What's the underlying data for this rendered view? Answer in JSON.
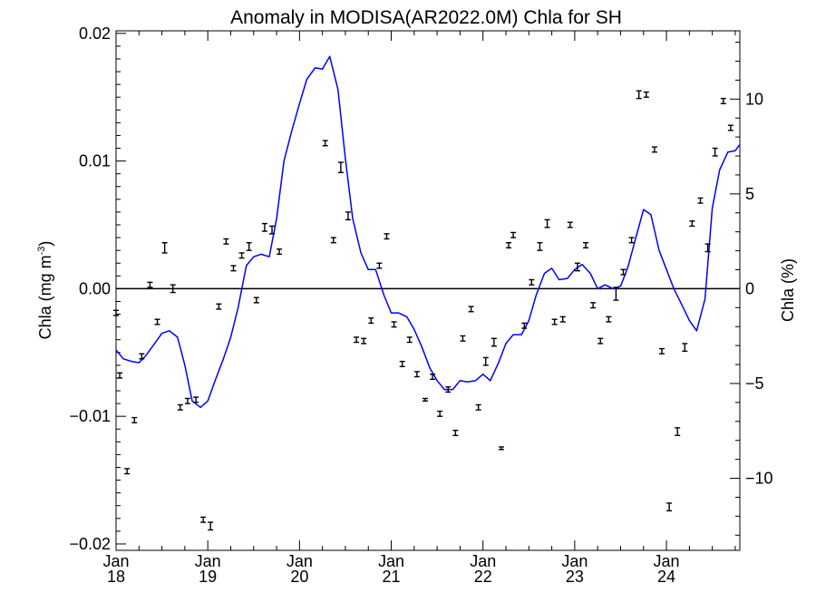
{
  "chart_data": {
    "type": "line",
    "title": "Anomaly in MODISA(AR2022.0M) Chla for SH",
    "ylabel_left_parts": [
      "Chla (mg m",
      "-3",
      ")"
    ],
    "ylabel_right": "Chla (%)",
    "xlim": [
      2018.0,
      2024.8
    ],
    "ylim_left": [
      -0.0205,
      0.0202
    ],
    "ylim_right": [
      -13.8,
      13.6
    ],
    "grid": false,
    "zero_line": true,
    "x_ticks": [
      {
        "x": 2018,
        "month": "Jan",
        "year": "18"
      },
      {
        "x": 2019,
        "month": "Jan",
        "year": "19"
      },
      {
        "x": 2020,
        "month": "Jan",
        "year": "20"
      },
      {
        "x": 2021,
        "month": "Jan",
        "year": "21"
      },
      {
        "x": 2022,
        "month": "Jan",
        "year": "22"
      },
      {
        "x": 2023,
        "month": "Jan",
        "year": "23"
      },
      {
        "x": 2024,
        "month": "Jan",
        "year": "24"
      }
    ],
    "y_ticks_left": [
      {
        "value": 0.02,
        "label": "0.02"
      },
      {
        "value": 0.01,
        "label": "0.01"
      },
      {
        "value": 0.0,
        "label": "0.00"
      },
      {
        "value": -0.01,
        "label": "−0.01"
      },
      {
        "value": -0.02,
        "label": "−0.02"
      }
    ],
    "y_ticks_right": [
      {
        "value": 10,
        "label": "10"
      },
      {
        "value": 5,
        "label": "5"
      },
      {
        "value": 0,
        "label": "0"
      },
      {
        "value": -5,
        "label": "−5"
      },
      {
        "value": -10,
        "label": "−10"
      }
    ],
    "series": [
      {
        "kind": "line",
        "axis": "left",
        "color": "#0000ff",
        "x": [
          2018.0,
          2018.08,
          2018.17,
          2018.25,
          2018.33,
          2018.42,
          2018.5,
          2018.58,
          2018.67,
          2018.75,
          2018.83,
          2018.92,
          2019.0,
          2019.08,
          2019.17,
          2019.25,
          2019.33,
          2019.42,
          2019.5,
          2019.58,
          2019.67,
          2019.75,
          2019.83,
          2019.92,
          2020.0,
          2020.08,
          2020.17,
          2020.25,
          2020.33,
          2020.42,
          2020.5,
          2020.58,
          2020.67,
          2020.75,
          2020.83,
          2020.92,
          2021.0,
          2021.08,
          2021.17,
          2021.25,
          2021.33,
          2021.42,
          2021.5,
          2021.58,
          2021.67,
          2021.75,
          2021.83,
          2021.92,
          2022.0,
          2022.08,
          2022.17,
          2022.25,
          2022.33,
          2022.42,
          2022.5,
          2022.58,
          2022.67,
          2022.75,
          2022.83,
          2022.92,
          2023.0,
          2023.08,
          2023.17,
          2023.25,
          2023.33,
          2023.42,
          2023.5,
          2023.58,
          2023.67,
          2023.75,
          2023.83,
          2023.92,
          2024.0,
          2024.08,
          2024.17,
          2024.25,
          2024.33,
          2024.42,
          2024.5,
          2024.58,
          2024.67,
          2024.75,
          2024.8
        ],
        "y": [
          -0.0048,
          -0.0055,
          -0.0057,
          -0.0058,
          -0.0052,
          -0.0043,
          -0.0035,
          -0.0033,
          -0.0038,
          -0.006,
          -0.0088,
          -0.0093,
          -0.0088,
          -0.0072,
          -0.0055,
          -0.0038,
          -0.0015,
          0.0018,
          0.0025,
          0.0027,
          0.0025,
          0.0055,
          0.01,
          0.0125,
          0.0145,
          0.0164,
          0.0173,
          0.0172,
          0.0182,
          0.0156,
          0.0102,
          0.0055,
          0.0028,
          0.0015,
          0.0015,
          -0.0005,
          -0.0019,
          -0.0019,
          -0.0022,
          -0.0032,
          -0.0045,
          -0.0062,
          -0.0072,
          -0.0079,
          -0.0079,
          -0.0072,
          -0.0073,
          -0.0072,
          -0.0067,
          -0.0072,
          -0.0058,
          -0.0043,
          -0.0036,
          -0.0036,
          -0.0025,
          -0.0005,
          0.0012,
          0.0016,
          0.0007,
          0.0008,
          0.0015,
          0.0019,
          0.0012,
          0.0,
          0.0003,
          0.0,
          0.0002,
          0.0017,
          0.0041,
          0.0062,
          0.0058,
          0.003,
          0.0015,
          0.0,
          -0.0013,
          -0.0025,
          -0.0033,
          -0.0008,
          0.0063,
          0.0093,
          0.0107,
          0.0108,
          0.0113
        ]
      },
      {
        "kind": "errorbar",
        "axis": "left",
        "color": "#000000",
        "points": [
          {
            "x": 2018.0,
            "y": -0.0019,
            "err": 0.0002
          },
          {
            "x": 2018.04,
            "y": -0.0068,
            "err": 0.0002
          },
          {
            "x": 2018.12,
            "y": -0.0143,
            "err": 0.0002
          },
          {
            "x": 2018.2,
            "y": -0.0103,
            "err": 0.0002
          },
          {
            "x": 2018.28,
            "y": -0.0053,
            "err": 0.0002
          },
          {
            "x": 2018.37,
            "y": 0.0003,
            "err": 0.0002
          },
          {
            "x": 2018.45,
            "y": -0.0026,
            "err": 0.0002
          },
          {
            "x": 2018.53,
            "y": 0.0032,
            "err": 0.0004
          },
          {
            "x": 2018.62,
            "y": 0.0,
            "err": 0.0003
          },
          {
            "x": 2018.7,
            "y": -0.0093,
            "err": 0.0002
          },
          {
            "x": 2018.78,
            "y": -0.0088,
            "err": 0.0002
          },
          {
            "x": 2018.87,
            "y": -0.0087,
            "err": 0.0002
          },
          {
            "x": 2018.95,
            "y": -0.0181,
            "err": 0.0002
          },
          {
            "x": 2019.03,
            "y": -0.0186,
            "err": 0.0003
          },
          {
            "x": 2019.12,
            "y": -0.0014,
            "err": 0.0002
          },
          {
            "x": 2019.2,
            "y": 0.0037,
            "err": 0.0002
          },
          {
            "x": 2019.28,
            "y": 0.0016,
            "err": 0.0002
          },
          {
            "x": 2019.37,
            "y": 0.0026,
            "err": 0.0002
          },
          {
            "x": 2019.45,
            "y": 0.0033,
            "err": 0.0003
          },
          {
            "x": 2019.53,
            "y": -0.0009,
            "err": 0.0002
          },
          {
            "x": 2019.62,
            "y": 0.0048,
            "err": 0.0003
          },
          {
            "x": 2019.7,
            "y": 0.0046,
            "err": 0.0003
          },
          {
            "x": 2019.78,
            "y": 0.0029,
            "err": 0.0002
          },
          {
            "x": 2020.28,
            "y": 0.0114,
            "err": 0.0002
          },
          {
            "x": 2020.37,
            "y": 0.0038,
            "err": 0.0002
          },
          {
            "x": 2020.45,
            "y": 0.0095,
            "err": 0.0004
          },
          {
            "x": 2020.53,
            "y": 0.0057,
            "err": 0.0003
          },
          {
            "x": 2020.62,
            "y": -0.004,
            "err": 0.0002
          },
          {
            "x": 2020.7,
            "y": -0.0041,
            "err": 0.0002
          },
          {
            "x": 2020.78,
            "y": -0.0025,
            "err": 0.0002
          },
          {
            "x": 2020.87,
            "y": 0.0018,
            "err": 0.0002
          },
          {
            "x": 2020.95,
            "y": 0.0041,
            "err": 0.0002
          },
          {
            "x": 2021.03,
            "y": -0.0028,
            "err": 0.0002
          },
          {
            "x": 2021.12,
            "y": -0.0059,
            "err": 0.0002
          },
          {
            "x": 2021.2,
            "y": -0.004,
            "err": 0.0002
          },
          {
            "x": 2021.28,
            "y": -0.0067,
            "err": 0.0002
          },
          {
            "x": 2021.37,
            "y": -0.0087,
            "err": 0.0001
          },
          {
            "x": 2021.45,
            "y": -0.0069,
            "err": 0.0002
          },
          {
            "x": 2021.53,
            "y": -0.0098,
            "err": 0.0002
          },
          {
            "x": 2021.62,
            "y": -0.0079,
            "err": 0.0002
          },
          {
            "x": 2021.7,
            "y": -0.0113,
            "err": 0.0002
          },
          {
            "x": 2021.78,
            "y": -0.0039,
            "err": 0.0002
          },
          {
            "x": 2021.87,
            "y": -0.0016,
            "err": 0.0002
          },
          {
            "x": 2021.95,
            "y": -0.0093,
            "err": 0.0002
          },
          {
            "x": 2022.03,
            "y": -0.0057,
            "err": 0.0003
          },
          {
            "x": 2022.12,
            "y": -0.0042,
            "err": 0.0003
          },
          {
            "x": 2022.2,
            "y": -0.0125,
            "err": 0.0001
          },
          {
            "x": 2022.28,
            "y": 0.0034,
            "err": 0.0002
          },
          {
            "x": 2022.33,
            "y": 0.0042,
            "err": 0.0002
          },
          {
            "x": 2022.45,
            "y": -0.0029,
            "err": 0.0002
          },
          {
            "x": 2022.53,
            "y": 0.0005,
            "err": 0.0002
          },
          {
            "x": 2022.62,
            "y": 0.0033,
            "err": 0.0003
          },
          {
            "x": 2022.7,
            "y": 0.0051,
            "err": 0.0003
          },
          {
            "x": 2022.78,
            "y": -0.0026,
            "err": 0.0002
          },
          {
            "x": 2022.87,
            "y": -0.0024,
            "err": 0.0002
          },
          {
            "x": 2022.95,
            "y": 0.005,
            "err": 0.0002
          },
          {
            "x": 2023.03,
            "y": 0.0017,
            "err": 0.0003
          },
          {
            "x": 2023.12,
            "y": 0.0034,
            "err": 0.0002
          },
          {
            "x": 2023.2,
            "y": -0.0013,
            "err": 0.0002
          },
          {
            "x": 2023.28,
            "y": -0.0041,
            "err": 0.0002
          },
          {
            "x": 2023.37,
            "y": -0.0024,
            "err": 0.0002
          },
          {
            "x": 2023.45,
            "y": -0.0004,
            "err": 0.0005
          },
          {
            "x": 2023.53,
            "y": 0.0013,
            "err": 0.0002
          },
          {
            "x": 2023.62,
            "y": 0.0038,
            "err": 0.0002
          },
          {
            "x": 2023.7,
            "y": 0.0152,
            "err": 0.0003
          },
          {
            "x": 2023.78,
            "y": 0.0152,
            "err": 0.0002
          },
          {
            "x": 2023.87,
            "y": 0.0109,
            "err": 0.0002
          },
          {
            "x": 2023.95,
            "y": -0.0049,
            "err": 0.0002
          },
          {
            "x": 2024.03,
            "y": -0.0171,
            "err": 0.0003
          },
          {
            "x": 2024.12,
            "y": -0.0112,
            "err": 0.0003
          },
          {
            "x": 2024.2,
            "y": -0.0046,
            "err": 0.0003
          },
          {
            "x": 2024.28,
            "y": 0.0051,
            "err": 0.0002
          },
          {
            "x": 2024.37,
            "y": 0.0069,
            "err": 0.0002
          },
          {
            "x": 2024.45,
            "y": 0.0032,
            "err": 0.0003
          },
          {
            "x": 2024.53,
            "y": 0.0107,
            "err": 0.0003
          },
          {
            "x": 2024.62,
            "y": 0.0147,
            "err": 0.0002
          },
          {
            "x": 2024.7,
            "y": 0.0126,
            "err": 0.0002
          }
        ]
      }
    ]
  }
}
